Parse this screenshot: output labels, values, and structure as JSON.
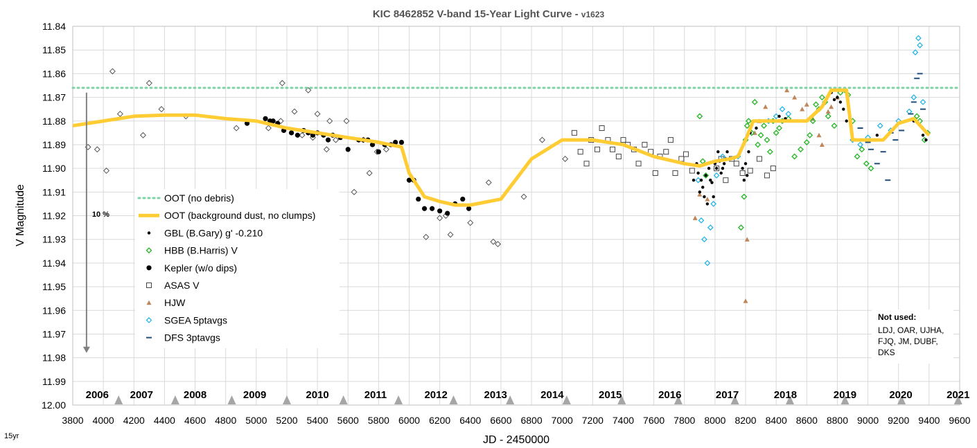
{
  "chart_data": {
    "type": "scatter",
    "title": "KIC 8462852 V-band 15-Year Light Curve - ",
    "subtitle": "v1623",
    "xlabel": "JD - 2450000",
    "ylabel": "V Magnitude",
    "xlim": [
      3800,
      9600
    ],
    "ylim": [
      11.84,
      12.0
    ],
    "y_inverted": true,
    "x_ticks": [
      "3800",
      "4000",
      "4200",
      "4400",
      "4600",
      "4800",
      "5000",
      "5200",
      "5400",
      "5600",
      "5800",
      "6000",
      "6200",
      "6400",
      "6600",
      "6800",
      "7000",
      "7200",
      "7400",
      "7600",
      "7800",
      "8000",
      "8200",
      "8400",
      "8600",
      "8800",
      "9000",
      "9200",
      "9400",
      "9600"
    ],
    "y_ticks": [
      "11.84",
      "11.85",
      "11.86",
      "11.87",
      "11.88",
      "11.89",
      "11.90",
      "11.91",
      "11.92",
      "11.93",
      "11.94",
      "11.95",
      "11.96",
      "11.97",
      "11.98",
      "11.99",
      "12.00"
    ],
    "grid": true,
    "legend_position": "left-center",
    "years": [
      {
        "label": "2006",
        "x": 3960
      },
      {
        "label": "2007",
        "x": 4250
      },
      {
        "label": "2008",
        "x": 4600
      },
      {
        "label": "2009",
        "x": 4990
      },
      {
        "label": "2010",
        "x": 5400
      },
      {
        "label": "2011",
        "x": 5780
      },
      {
        "label": "2012",
        "x": 6175
      },
      {
        "label": "2013",
        "x": 6565
      },
      {
        "label": "2014",
        "x": 6935
      },
      {
        "label": "2015",
        "x": 7315
      },
      {
        "label": "2016",
        "x": 7705
      },
      {
        "label": "2017",
        "x": 8080
      },
      {
        "label": "2018",
        "x": 8460
      },
      {
        "label": "2019",
        "x": 8850
      },
      {
        "label": "2020",
        "x": 9215
      },
      {
        "label": "2021",
        "x": 9590
      }
    ],
    "year_markers_x": [
      4100,
      4470,
      4840,
      5200,
      5570,
      5930,
      6290,
      6660,
      7030,
      7390,
      7760,
      8130,
      8490,
      8850,
      9220,
      9590
    ],
    "oot_no_debris": 11.866,
    "oot_background_dust": {
      "x": [
        3800,
        4000,
        4200,
        4400,
        4600,
        4800,
        5000,
        5200,
        5400,
        5600,
        5800,
        5950,
        6000,
        6100,
        6200,
        6300,
        6400,
        6600,
        6800,
        7000,
        7200,
        7400,
        7600,
        7800,
        7900,
        8000,
        8100,
        8150,
        8200,
        8250,
        8300,
        8600,
        8700,
        8760,
        8830,
        8860,
        8900,
        9000,
        9100,
        9200,
        9300,
        9400
      ],
      "y": [
        11.882,
        11.88,
        11.878,
        11.8775,
        11.8775,
        11.879,
        11.88,
        11.883,
        11.885,
        11.887,
        11.889,
        11.891,
        11.902,
        11.912,
        11.914,
        11.9155,
        11.9155,
        11.913,
        11.896,
        11.888,
        11.888,
        11.89,
        11.895,
        11.898,
        11.899,
        11.897,
        11.896,
        11.895,
        11.888,
        11.88,
        11.88,
        11.88,
        11.874,
        11.867,
        11.867,
        11.867,
        11.888,
        11.888,
        11.888,
        11.881,
        11.879,
        11.886
      ]
    },
    "series": [
      {
        "name": "GBL (B.Gary) g' -0.210",
        "marker": "small-dot",
        "color": "#000000",
        "x": [
          7860,
          7880,
          7890,
          7900,
          7910,
          7920,
          7930,
          7940,
          7950,
          7960,
          7970,
          7980,
          7990,
          8000,
          8010,
          8020,
          8030,
          8040,
          8050,
          8060,
          8070,
          8080,
          8180,
          8190,
          8200,
          8210,
          8220,
          8230,
          8250,
          8270,
          8300,
          8340,
          8380,
          8420,
          8460,
          8760,
          8780,
          8800,
          8820,
          8840,
          8860,
          9000,
          9060,
          9100,
          9200,
          9300,
          9360,
          9380
        ],
        "y": [
          11.905,
          11.898,
          11.902,
          11.91,
          11.905,
          11.908,
          11.912,
          11.903,
          11.915,
          11.9,
          11.905,
          11.906,
          11.912,
          11.898,
          11.9,
          11.893,
          11.897,
          11.902,
          11.9,
          11.898,
          11.896,
          11.893,
          11.9,
          11.905,
          11.898,
          11.903,
          11.893,
          11.885,
          11.88,
          11.883,
          11.88,
          11.88,
          11.88,
          11.878,
          11.879,
          11.868,
          11.871,
          11.87,
          11.872,
          11.875,
          11.88,
          11.888,
          11.886,
          11.888,
          11.881,
          11.88,
          11.886,
          11.888
        ]
      },
      {
        "name": "HBB (B.Harris) V",
        "marker": "diamond",
        "color": "#2eb82e",
        "x": [
          7900,
          7920,
          7940,
          8170,
          8190,
          8200,
          8210,
          8220,
          8240,
          8260,
          8280,
          8300,
          8320,
          8340,
          8360,
          8380,
          8400,
          8420,
          8440,
          8480,
          8520,
          8560,
          8600,
          8620,
          8640,
          8660,
          8680,
          8700,
          8720,
          8740,
          8780,
          8820,
          8850,
          8870,
          8900,
          8930,
          8960,
          8990,
          9020,
          9320,
          9340,
          9370,
          9390
        ],
        "y": [
          11.878,
          11.897,
          11.903,
          11.925,
          11.912,
          11.888,
          11.882,
          11.88,
          11.885,
          11.872,
          11.89,
          11.886,
          11.882,
          11.888,
          11.893,
          11.88,
          11.885,
          11.883,
          11.88,
          11.879,
          11.895,
          11.892,
          11.889,
          11.886,
          11.88,
          11.873,
          11.875,
          11.87,
          11.872,
          11.878,
          11.882,
          11.868,
          11.867,
          11.869,
          11.88,
          11.895,
          11.892,
          11.898,
          11.9,
          11.878,
          11.88,
          11.888,
          11.885
        ]
      },
      {
        "name": "Kepler (w/o dips)",
        "marker": "large-dot",
        "color": "#000000",
        "x": [
          4940,
          5060,
          5090,
          5110,
          5140,
          5180,
          5230,
          5270,
          5310,
          5340,
          5370,
          5400,
          5440,
          5470,
          5500,
          5550,
          5600,
          5670,
          5700,
          5730,
          5760,
          5800,
          5840,
          5880,
          5910,
          5950,
          6000,
          6030,
          6060,
          6100,
          6150,
          6200,
          6250,
          6300,
          6350,
          6390
        ],
        "y": [
          11.881,
          11.879,
          11.88,
          11.88,
          11.881,
          11.884,
          11.885,
          11.886,
          11.884,
          11.885,
          11.886,
          11.885,
          11.886,
          11.888,
          11.886,
          11.887,
          11.892,
          11.888,
          11.888,
          11.888,
          11.89,
          11.893,
          11.89,
          11.89,
          11.889,
          11.889,
          11.905,
          11.905,
          11.913,
          11.917,
          11.917,
          11.918,
          11.919,
          11.915,
          11.913,
          11.917
        ]
      },
      {
        "name": "ASAS V",
        "marker": "open-square",
        "color": "#000000",
        "x": [
          7080,
          7120,
          7160,
          7190,
          7230,
          7260,
          7300,
          7330,
          7370,
          7400,
          7430,
          7470,
          7500,
          7540,
          7580,
          7610,
          7640,
          7680,
          7710,
          7740,
          7780,
          7810,
          7850,
          8010,
          8040,
          8070,
          8110,
          8140,
          8180,
          8230,
          8290,
          8340,
          8380
        ],
        "y": [
          11.885,
          11.893,
          11.898,
          11.888,
          11.892,
          11.883,
          11.888,
          11.892,
          11.895,
          11.888,
          11.89,
          11.892,
          11.898,
          11.89,
          11.893,
          11.902,
          11.895,
          11.893,
          11.888,
          11.902,
          11.896,
          11.894,
          11.901,
          11.9,
          11.896,
          11.905,
          11.896,
          11.898,
          11.902,
          11.901,
          11.896,
          11.903,
          11.9
        ]
      },
      {
        "name": "HJW",
        "marker": "triangle",
        "color": "#c0865a",
        "x": [
          7870,
          7900,
          7950,
          8200,
          8210,
          8260,
          8290,
          8330,
          8470,
          8520,
          8570,
          8600,
          8640,
          8680,
          8700,
          8740,
          8760,
          8800
        ],
        "y": [
          11.921,
          11.911,
          11.913,
          11.956,
          11.93,
          11.885,
          11.88,
          11.874,
          11.867,
          11.87,
          11.875,
          11.873,
          11.879,
          11.886,
          11.89,
          11.876,
          11.874,
          11.87
        ]
      },
      {
        "name": "SGEA 5ptavgs",
        "marker": "open-diamond-cyan",
        "color": "#1ab2e6",
        "x": [
          7890,
          7910,
          7930,
          7950,
          7970,
          7990,
          8010,
          8050,
          8150,
          8350,
          8400,
          8440,
          8480,
          8900,
          8950,
          9000,
          9080,
          9150,
          9200,
          9270,
          9300,
          9310,
          9330,
          9340,
          9360
        ],
        "y": [
          11.905,
          11.922,
          11.93,
          11.94,
          11.925,
          11.915,
          11.903,
          11.895,
          11.895,
          11.88,
          11.878,
          11.875,
          11.877,
          11.888,
          11.89,
          11.887,
          11.882,
          11.884,
          11.88,
          11.876,
          11.87,
          11.851,
          11.845,
          11.848,
          11.872
        ]
      },
      {
        "name": "DFS 3ptavgs",
        "marker": "dash",
        "color": "#1f4e79",
        "x": [
          8950,
          9000,
          9020,
          9060,
          9100,
          9130,
          9150,
          9180,
          9220,
          9250,
          9280,
          9300,
          9320,
          9340,
          9360
        ],
        "y": [
          11.883,
          11.889,
          11.892,
          11.898,
          11.893,
          11.905,
          11.885,
          11.888,
          11.884,
          11.88,
          11.877,
          11.872,
          11.862,
          11.86,
          11.875
        ]
      },
      {
        "name": "early-open-diamonds",
        "marker": "open-diamond",
        "color": "#000000",
        "x": [
          3900,
          3960,
          4020,
          4060,
          4110,
          4260,
          4300,
          4380,
          4540,
          4870,
          5080,
          5160,
          5170,
          5250,
          5300,
          5340,
          5370,
          5400,
          5460,
          5480,
          5520,
          5590,
          5640,
          5700,
          5740,
          5790,
          5850,
          6110,
          6200,
          6240,
          6270,
          6400,
          6520,
          6550,
          6580,
          6750,
          6870,
          7020
        ],
        "y": [
          11.891,
          11.892,
          11.901,
          11.859,
          11.877,
          11.886,
          11.864,
          11.875,
          11.878,
          11.883,
          11.883,
          11.88,
          11.864,
          11.876,
          11.886,
          11.867,
          11.887,
          11.877,
          11.892,
          11.88,
          11.888,
          11.88,
          11.91,
          11.888,
          11.902,
          11.893,
          11.892,
          11.929,
          11.921,
          11.92,
          11.928,
          11.923,
          11.906,
          11.931,
          11.932,
          11.912,
          11.888,
          11.896
        ]
      }
    ],
    "legend": [
      {
        "label": "OOT (no debris)",
        "kind": "dotted-line"
      },
      {
        "label": "OOT (background dust, no clumps)",
        "kind": "thick-line"
      },
      {
        "label": "GBL (B.Gary) g' -0.210",
        "kind": "small-dot"
      },
      {
        "label": "HBB (B.Harris) V",
        "kind": "diamond"
      },
      {
        "label": "Kepler (w/o dips)",
        "kind": "large-dot"
      },
      {
        "label": "ASAS V",
        "kind": "open-square"
      },
      {
        "label": "HJW",
        "kind": "triangle"
      },
      {
        "label": "SGEA 5ptavgs",
        "kind": "open-diamond-cyan"
      },
      {
        "label": "DFS 3ptavgs",
        "kind": "dash"
      }
    ],
    "annotations": {
      "arrow_label": "10 %",
      "arrow_from_y": 11.868,
      "arrow_to_y": 11.978,
      "arrow_x": 3890,
      "corner_note": "15yr"
    },
    "not_used": {
      "title": "Not used:",
      "lines": [
        "LDJ, OAR, UJHA,",
        "FJQ, JM, DUBF,",
        "DKS"
      ]
    },
    "colors": {
      "grid": "#d9d9d9",
      "oot_no_debris": "#7fd1a6",
      "oot_dust": "#ffcc33",
      "arrow": "#808080",
      "year_marker": "#a6a6a6"
    }
  }
}
